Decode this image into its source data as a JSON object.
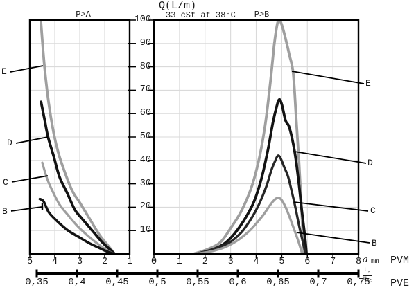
{
  "header": {
    "title": "Q(L/m)",
    "subtitle": "33 cSt at 38°C"
  },
  "y_axis": {
    "label": "Q(L/m)",
    "tick_labels": [
      "100",
      "90",
      "80",
      "70",
      "60",
      "50",
      "40",
      "30",
      "20",
      "10"
    ]
  },
  "primary_axis_units": {
    "var": "a",
    "unit": "mm",
    "model_label": "PVM"
  },
  "secondary_axis": {
    "tick_labels": [
      "0,35",
      "0,4",
      "0,45",
      "0,5",
      "0,55",
      "0,6",
      "0,65",
      "0,7",
      "0,75"
    ],
    "unit_num_base": "U",
    "unit_num_sub": "s",
    "unit_den_base": "U",
    "unit_den_sub": "DC",
    "model_label": "PVE"
  },
  "curve_labels": {
    "E": "E",
    "D": "D",
    "C": "C",
    "B": "B"
  },
  "colors": {
    "gray": "#9f9f9f",
    "black": "#131313",
    "dark": "#262626",
    "grid": "#dadada",
    "axis": "#000000"
  },
  "chart_data": [
    {
      "id": "left",
      "type": "line",
      "title": "P>A",
      "x_range": [
        5,
        1
      ],
      "y_range": [
        0,
        100
      ],
      "x_tick_labels": [
        "5",
        "4",
        "3",
        "2",
        "1"
      ],
      "grid": true,
      "series": [
        {
          "name": "E",
          "color": "#9f9f9f",
          "width": 3.8,
          "points": [
            [
              4.56,
              100
            ],
            [
              4.42,
              81
            ],
            [
              4.25,
              65
            ],
            [
              4.05,
              52
            ],
            [
              3.85,
              43
            ],
            [
              3.6,
              35
            ],
            [
              3.3,
              27
            ],
            [
              3.0,
              22
            ],
            [
              2.6,
              15
            ],
            [
              2.2,
              8
            ],
            [
              1.9,
              4
            ],
            [
              1.6,
              0
            ]
          ]
        },
        {
          "name": "D",
          "color": "#131313",
          "width": 3.8,
          "points": [
            [
              4.55,
              65
            ],
            [
              4.4,
              57
            ],
            [
              4.27,
              50
            ],
            [
              4.05,
              42
            ],
            [
              3.81,
              33
            ],
            [
              3.5,
              26
            ],
            [
              3.2,
              19
            ],
            [
              2.9,
              15
            ],
            [
              2.5,
              10
            ],
            [
              2.1,
              5
            ],
            [
              1.8,
              2
            ],
            [
              1.6,
              0
            ]
          ]
        },
        {
          "name": "C",
          "color": "#9f9f9f",
          "width": 3.3,
          "points": [
            [
              4.5,
              39
            ],
            [
              4.3,
              32
            ],
            [
              4.05,
              26
            ],
            [
              3.8,
              21
            ],
            [
              3.5,
              17
            ],
            [
              3.1,
              12
            ],
            [
              2.7,
              8
            ],
            [
              2.3,
              4.5
            ],
            [
              1.9,
              1.5
            ],
            [
              1.6,
              0
            ]
          ]
        },
        {
          "name": "B",
          "color": "#131313",
          "width": 3.6,
          "points": [
            [
              4.6,
              23.5
            ],
            [
              4.45,
              22.5
            ],
            [
              4.25,
              18
            ],
            [
              4.0,
              15
            ],
            [
              3.7,
              12
            ],
            [
              3.4,
              9.5
            ],
            [
              3.0,
              7
            ],
            [
              2.6,
              4.5
            ],
            [
              2.2,
              2.5
            ],
            [
              1.9,
              1
            ],
            [
              1.6,
              0
            ]
          ]
        }
      ]
    },
    {
      "id": "right",
      "type": "line",
      "title": "P>B",
      "x_label": "a mm",
      "x_range": [
        0,
        8
      ],
      "y_range": [
        0,
        100
      ],
      "x_tick_labels": [
        "0",
        "1",
        "2",
        "3",
        "4",
        "5",
        "6",
        "7",
        "8"
      ],
      "grid": true,
      "series": [
        {
          "name": "E",
          "color": "#9f9f9f",
          "width": 3.8,
          "points": [
            [
              1.55,
              0
            ],
            [
              2.1,
              2
            ],
            [
              2.6,
              5
            ],
            [
              3.0,
              11
            ],
            [
              3.4,
              18
            ],
            [
              3.8,
              28
            ],
            [
              4.1,
              40
            ],
            [
              4.35,
              55
            ],
            [
              4.55,
              73
            ],
            [
              4.7,
              89
            ],
            [
              4.82,
              98
            ],
            [
              4.9,
              100
            ],
            [
              5.0,
              98
            ],
            [
              5.15,
              92
            ],
            [
              5.3,
              85
            ],
            [
              5.45,
              77
            ],
            [
              5.58,
              55
            ],
            [
              5.67,
              40
            ],
            [
              5.76,
              22
            ],
            [
              5.83,
              8
            ],
            [
              5.87,
              0
            ]
          ]
        },
        {
          "name": "D",
          "color": "#131313",
          "width": 3.8,
          "points": [
            [
              1.65,
              0
            ],
            [
              2.2,
              1.5
            ],
            [
              2.7,
              4
            ],
            [
              3.1,
              8
            ],
            [
              3.5,
              14
            ],
            [
              3.9,
              22
            ],
            [
              4.2,
              32
            ],
            [
              4.45,
              44
            ],
            [
              4.65,
              56
            ],
            [
              4.8,
              63
            ],
            [
              4.9,
              66
            ],
            [
              5.0,
              64
            ],
            [
              5.15,
              57
            ],
            [
              5.3,
              54
            ],
            [
              5.5,
              44
            ],
            [
              5.65,
              32
            ],
            [
              5.78,
              19
            ],
            [
              5.9,
              8
            ],
            [
              5.97,
              0
            ]
          ]
        },
        {
          "name": "C",
          "color": "#262626",
          "width": 3.4,
          "points": [
            [
              1.65,
              0
            ],
            [
              2.3,
              2
            ],
            [
              2.9,
              4.5
            ],
            [
              3.4,
              9
            ],
            [
              3.8,
              15
            ],
            [
              4.1,
              21
            ],
            [
              4.4,
              29
            ],
            [
              4.6,
              36
            ],
            [
              4.75,
              40
            ],
            [
              4.85,
              42
            ],
            [
              4.95,
              41
            ],
            [
              5.1,
              37
            ],
            [
              5.25,
              33
            ],
            [
              5.45,
              24
            ],
            [
              5.55,
              19
            ],
            [
              5.7,
              11
            ],
            [
              5.85,
              4
            ],
            [
              5.93,
              0
            ]
          ]
        },
        {
          "name": "B",
          "color": "#9f9f9f",
          "width": 3.4,
          "points": [
            [
              1.55,
              0
            ],
            [
              2.2,
              1
            ],
            [
              2.8,
              3
            ],
            [
              3.3,
              6
            ],
            [
              3.7,
              9.5
            ],
            [
              4.0,
              13
            ],
            [
              4.3,
              17
            ],
            [
              4.55,
              21
            ],
            [
              4.75,
              23.5
            ],
            [
              4.88,
              24
            ],
            [
              5.0,
              23
            ],
            [
              5.15,
              20
            ],
            [
              5.3,
              16
            ],
            [
              5.45,
              11.5
            ],
            [
              5.6,
              7
            ],
            [
              5.72,
              3
            ],
            [
              5.8,
              0
            ]
          ]
        }
      ]
    }
  ]
}
